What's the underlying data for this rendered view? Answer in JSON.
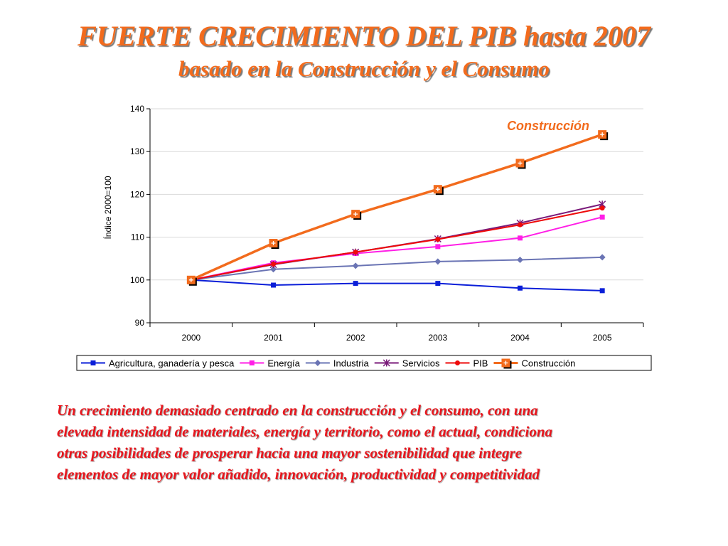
{
  "title": "FUERTE CRECIMIENTO DEL PIB hasta 2007",
  "subtitle": "basado en la Construcción y el Consumo",
  "colors": {
    "title": "#f26b1d",
    "body_text": "#e8161d"
  },
  "body_lines": [
    "Un crecimiento demasiado centrado en la construcción y el consumo, con una",
    "elevada intensidad de materiales, energía y territorio, como el actual, condiciona",
    "otras posibilidades de prosperar hacia una mayor sostenibilidad que integre",
    "elementos de mayor valor añadido, innovación, productividad y competitividad"
  ],
  "chart_data": {
    "type": "line",
    "ylabel": "Índice 2000=100",
    "xlabel": "",
    "ylim": [
      90,
      140
    ],
    "yticks": [
      90,
      100,
      110,
      120,
      130,
      140
    ],
    "grid": true,
    "legend_position": "bottom",
    "categories": [
      "2000",
      "2001",
      "2002",
      "2003",
      "2004",
      "2005"
    ],
    "annotation": "Construcción",
    "series": [
      {
        "name": "Agricultura, ganadería y pesca",
        "color": "#0a1ed8",
        "marker": "square",
        "values": [
          100,
          98.8,
          99.2,
          99.2,
          98.1,
          97.5
        ]
      },
      {
        "name": "Energía",
        "color": "#ff1ee6",
        "marker": "square",
        "values": [
          100,
          104.0,
          106.2,
          107.8,
          109.8,
          114.7
        ]
      },
      {
        "name": "Industria",
        "color": "#6a74b4",
        "marker": "diamond",
        "values": [
          100,
          102.5,
          103.3,
          104.3,
          104.7,
          105.3
        ]
      },
      {
        "name": "Servicios",
        "color": "#7a1a7a",
        "marker": "star",
        "values": [
          100,
          103.6,
          106.5,
          109.6,
          113.3,
          117.7
        ]
      },
      {
        "name": "PIB",
        "color": "#ee0a0a",
        "marker": "circle",
        "values": [
          100,
          103.7,
          106.5,
          109.5,
          112.9,
          116.8
        ]
      },
      {
        "name": "Construcción",
        "color": "#f26b1d",
        "marker": "plus-square",
        "values": [
          100,
          108.6,
          115.4,
          121.2,
          127.3,
          134.0
        ]
      }
    ]
  }
}
